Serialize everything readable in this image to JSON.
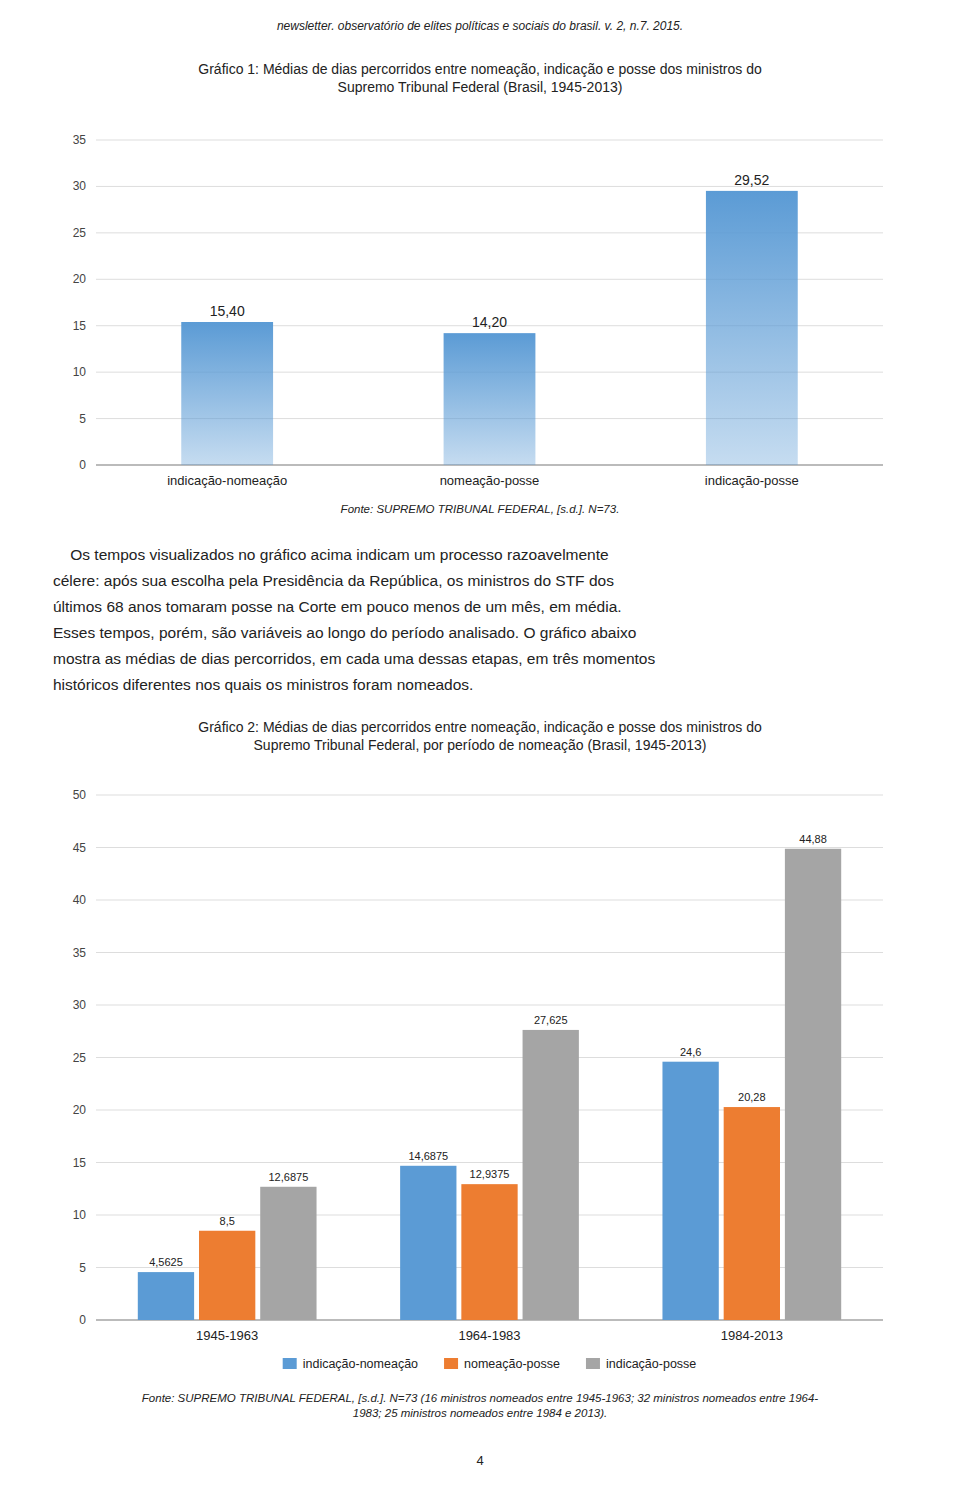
{
  "page_header": "newsletter. observatório de elites políticas e sociais do brasil. v. 2, n.7. 2015.",
  "body_text": [
    "    Os tempos visualizados no gráfico acima indicam um processo razoavelmente",
    "célere: após sua escolha pela Presidência da República, os ministros do STF dos",
    "últimos 68 anos tomaram posse na Corte em pouco menos de um mês, em média.",
    "Esses tempos, porém, são variáveis ao longo do período analisado. O gráfico abaixo",
    "mostra as médias de dias percorridos, em cada uma dessas etapas, em três momentos",
    "históricos diferentes nos quais os ministros foram nomeados."
  ],
  "page_number": "4",
  "chart_data": [
    {
      "type": "bar",
      "title": [
        "Gráfico 1: Médias de dias percorridos entre nomeação, indicação e posse dos ministros do",
        "Supremo Tribunal Federal (Brasil, 1945-2013)"
      ],
      "categories": [
        "indicação-nomeação",
        "nomeação-posse",
        "indicação-posse"
      ],
      "values": [
        15.4,
        14.2,
        29.52
      ],
      "value_labels": [
        "15,40",
        "14,20",
        "29,52"
      ],
      "color": "#5b9bd5",
      "data_labels": true,
      "ylim": [
        0,
        35
      ],
      "yticks": [
        0,
        5,
        10,
        15,
        20,
        25,
        30,
        35
      ],
      "grid": true,
      "source": [
        "Fonte: SUPREMO TRIBUNAL FEDERAL, [s.d.]. N=73."
      ]
    },
    {
      "type": "bar",
      "title": [
        "Gráfico 2: Médias de dias percorridos entre nomeação, indicação e posse dos ministros do",
        "Supremo Tribunal Federal, por período de nomeação (Brasil, 1945-2013)"
      ],
      "categories": [
        "1945-1963",
        "1964-1983",
        "1984-2013"
      ],
      "series": [
        {
          "name": "indicação-nomeação",
          "color": "#5b9bd5",
          "values": [
            4.5625,
            14.6875,
            24.6
          ],
          "value_labels": [
            "4,5625",
            "14,6875",
            "24,6"
          ]
        },
        {
          "name": "nomeação-posse",
          "color": "#ed7d31",
          "values": [
            8.5,
            12.9375,
            20.28
          ],
          "value_labels": [
            "8,5",
            "12,9375",
            "20,28"
          ]
        },
        {
          "name": "indicação-posse",
          "color": "#a5a5a5",
          "values": [
            12.6875,
            27.625,
            44.88
          ],
          "value_labels": [
            "12,6875",
            "27,625",
            "44,88"
          ]
        }
      ],
      "data_labels": true,
      "ylim": [
        0,
        50
      ],
      "yticks": [
        0,
        5,
        10,
        15,
        20,
        25,
        30,
        35,
        40,
        45,
        50
      ],
      "grid": true,
      "legend": "bottom",
      "source": [
        "Fonte: SUPREMO TRIBUNAL FEDERAL, [s.d.]. N=73 (16 ministros nomeados entre 1945-1963; 32 ministros nomeados entre 1964-",
        "1983; 25 ministros nomeados entre 1984 e 2013)."
      ]
    }
  ]
}
